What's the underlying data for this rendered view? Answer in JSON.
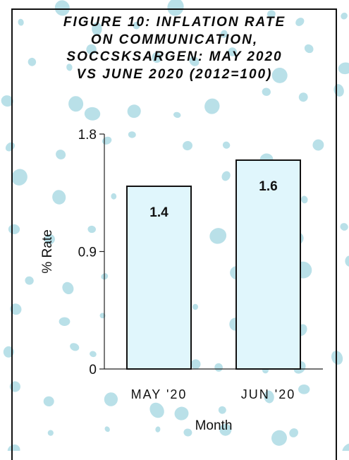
{
  "theme": {
    "background": "#ffffff",
    "dot_color": "#a8d8e2",
    "bar_fill": "#e0f6fc",
    "bar_stroke": "#111111",
    "frame_color": "#111111"
  },
  "chart_data": {
    "type": "bar",
    "title": "FIGURE 10: INFLATION RATE ON COMMUNICATION, SOCCSKSARGEN: MAY 2020 VS JUNE 2020 (2012=100)",
    "title_lines": [
      "FIGURE 10: INFLATION RATE",
      "ON COMMUNICATION,",
      "SOCCSKSARGEN: MAY 2020",
      "VS JUNE 2020 (2012=100)"
    ],
    "categories": [
      "MAY '20",
      "JUN '20"
    ],
    "values": [
      1.4,
      1.6
    ],
    "data_labels": [
      "1.4",
      "1.6"
    ],
    "xlabel": "Month",
    "ylabel": "% Rate",
    "ylim": [
      0,
      1.8
    ],
    "yticks": [
      0,
      0.9,
      1.8
    ],
    "ytick_labels": [
      "0",
      "0.9",
      "1.8"
    ],
    "grid": false,
    "legend": "none"
  }
}
